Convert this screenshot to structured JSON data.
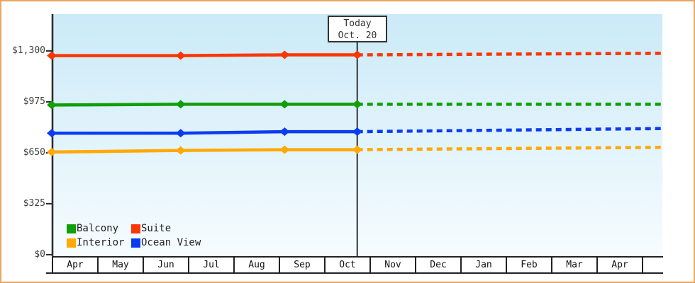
{
  "theme": {
    "frame_border": "#eba55f",
    "plot_gradient_top": "#cbeaf8",
    "plot_gradient_bottom": "#f6fcfe",
    "axis_color": "#2e2e2e",
    "grid_text_color": "#3f3f3f"
  },
  "legend": [
    {
      "label": "Balcony",
      "color": "#129e0a"
    },
    {
      "label": "Suite",
      "color": "#fa3603"
    },
    {
      "label": "Interior",
      "color": "#ffa905"
    },
    {
      "label": "Ocean View",
      "color": "#0b3cf1"
    }
  ],
  "chart_data": {
    "type": "line",
    "title": "",
    "x_axis": {
      "months": [
        "Apr",
        "May",
        "Jun",
        "Jul",
        "Aug",
        "Sep",
        "Oct",
        "Nov",
        "Dec",
        "Jan",
        "Feb",
        "Mar",
        "Apr",
        ""
      ],
      "unit": "month",
      "span_months": 13.45
    },
    "y_axis": {
      "ticks": [
        0,
        325,
        650,
        975,
        1300
      ],
      "tick_labels": [
        "$0",
        "$325",
        "$650",
        "$975",
        "$1,300"
      ],
      "range": [
        0,
        1540
      ]
    },
    "today": {
      "label": "Today",
      "date": "Oct. 20",
      "month_position": 6.73
    },
    "series": [
      {
        "name": "Suite",
        "color": "#fa3603",
        "x": [
          0,
          2.84,
          5.13,
          6.73
        ],
        "values": [
          1270,
          1270,
          1275,
          1275
        ],
        "forecast_end_value": 1285
      },
      {
        "name": "Balcony",
        "color": "#129e0a",
        "x": [
          0,
          2.84,
          5.13,
          6.73
        ],
        "values": [
          955,
          960,
          960,
          960
        ],
        "forecast_end_value": 960
      },
      {
        "name": "Ocean View",
        "color": "#0b3cf1",
        "x": [
          0,
          2.84,
          5.13,
          6.73
        ],
        "values": [
          775,
          775,
          785,
          785
        ],
        "forecast_end_value": 805
      },
      {
        "name": "Interior",
        "color": "#ffa905",
        "x": [
          0,
          2.84,
          5.13,
          6.73
        ],
        "values": [
          655,
          665,
          670,
          670
        ],
        "forecast_end_value": 685
      }
    ],
    "legend_position": "bottom-left-inside",
    "grid": "off"
  }
}
